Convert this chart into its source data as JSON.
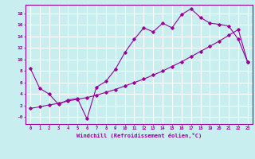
{
  "xlabel": "Windchill (Refroidissement éolien,°C)",
  "bg_color": "#c8eef0",
  "line_color": "#990099",
  "grid_color": "#ffffff",
  "xlim": [
    -0.5,
    23.5
  ],
  "ylim": [
    -1.2,
    19.5
  ],
  "xticks": [
    0,
    1,
    2,
    3,
    4,
    5,
    6,
    7,
    8,
    9,
    10,
    11,
    12,
    13,
    14,
    15,
    16,
    17,
    18,
    19,
    20,
    21,
    22,
    23
  ],
  "yticks": [
    0,
    2,
    4,
    6,
    8,
    10,
    12,
    14,
    16,
    18
  ],
  "ytick_labels": [
    "-0",
    "2",
    "4",
    "6",
    "8",
    "10",
    "12",
    "14",
    "16",
    "18"
  ],
  "line1_x": [
    0,
    1,
    2,
    3,
    4,
    5,
    6,
    7,
    8,
    9,
    10,
    11,
    12,
    13,
    14,
    15,
    16,
    17,
    18,
    19,
    20,
    21,
    22,
    23
  ],
  "line1_y": [
    8.5,
    5.0,
    4.0,
    2.2,
    3.0,
    3.2,
    -0.3,
    5.2,
    6.2,
    8.3,
    11.2,
    13.5,
    15.5,
    14.8,
    16.3,
    15.5,
    17.8,
    18.8,
    17.3,
    16.3,
    16.1,
    15.8,
    13.5,
    9.5
  ],
  "line2_x": [
    0,
    1,
    2,
    3,
    4,
    5,
    6,
    7,
    8,
    9,
    10,
    11,
    12,
    13,
    14,
    15,
    16,
    17,
    18,
    19,
    20,
    21,
    22,
    23
  ],
  "line2_y": [
    1.5,
    1.8,
    2.1,
    2.4,
    2.8,
    3.1,
    3.4,
    3.8,
    4.3,
    4.8,
    5.4,
    6.0,
    6.6,
    7.3,
    8.0,
    8.8,
    9.6,
    10.5,
    11.4,
    12.3,
    13.2,
    14.2,
    15.2,
    9.5
  ]
}
